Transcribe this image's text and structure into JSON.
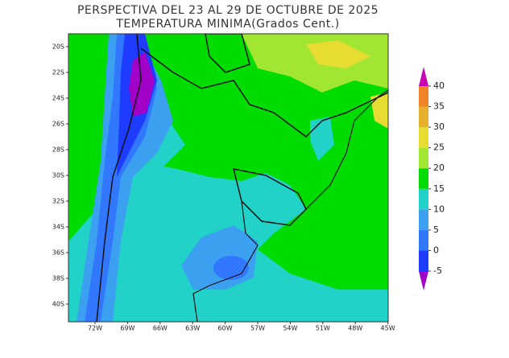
{
  "title": [
    "PERSPECTIVA DEL 23 AL 29 DE OCTUBRE DE 2025",
    "TEMPERATURA MINIMA(Grados Cent.)"
  ],
  "lat_labels": [
    "20S",
    "22S",
    "24S",
    "26S",
    "28S",
    "30S",
    "32S",
    "34S",
    "36S",
    "38S",
    "40S"
  ],
  "lon_labels": [
    "72W",
    "69W",
    "66W",
    "63W",
    "60W",
    "57W",
    "54W",
    "51W",
    "48W",
    "45W"
  ],
  "colorbar": {
    "levels": [
      -5,
      0,
      5,
      10,
      15,
      20,
      25,
      30,
      35,
      40
    ],
    "colors": [
      "#a000c8",
      "#1e3cff",
      "#3278ff",
      "#3ca0f0",
      "#22d2c8",
      "#00dc00",
      "#a0e632",
      "#e6dc32",
      "#e6af2d",
      "#f08228",
      "#fa3c3c",
      "#c800b4"
    ]
  }
}
